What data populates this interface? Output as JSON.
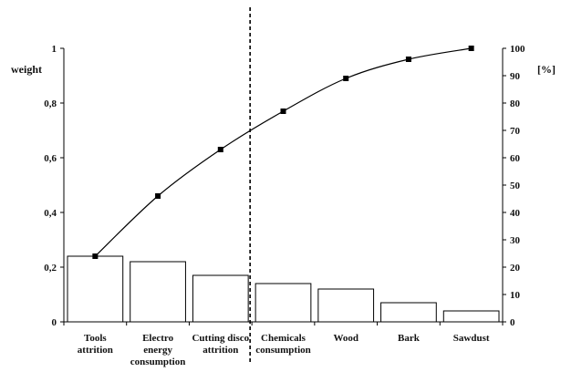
{
  "chart_data": {
    "type": "bar",
    "categories": [
      [
        "Tools",
        "attrition"
      ],
      [
        "Electro",
        "energy",
        "consumption"
      ],
      [
        "Cutting disco",
        "attrition"
      ],
      [
        "Chemicals",
        "consumption"
      ],
      [
        "Wood"
      ],
      [
        "Bark"
      ],
      [
        "Sawdust"
      ]
    ],
    "series": [
      {
        "values": [
          0.24,
          0.22,
          0.17,
          0.14,
          0.12,
          0.07,
          0.04
        ]
      },
      {
        "values": [
          24,
          46,
          63,
          77,
          89,
          96,
          100
        ]
      }
    ],
    "ylabel": "weight",
    "y2label": "[%]",
    "ylim": [
      0,
      1
    ],
    "y2lim": [
      0,
      100
    ],
    "yticks": [
      "0",
      "0,2",
      "0,4",
      "0,6",
      "0,8",
      "1"
    ],
    "y2ticks": [
      "0",
      "10",
      "20",
      "30",
      "40",
      "50",
      "60",
      "70",
      "80",
      "90",
      "100"
    ],
    "divider": "dashed vertical line between Cutting disco attrition and Chemicals consumption",
    "grid": false,
    "colors": {
      "bar_fill": "#ffffff",
      "bar_stroke": "#000000",
      "line": "#000000",
      "marker": "#000000"
    }
  }
}
